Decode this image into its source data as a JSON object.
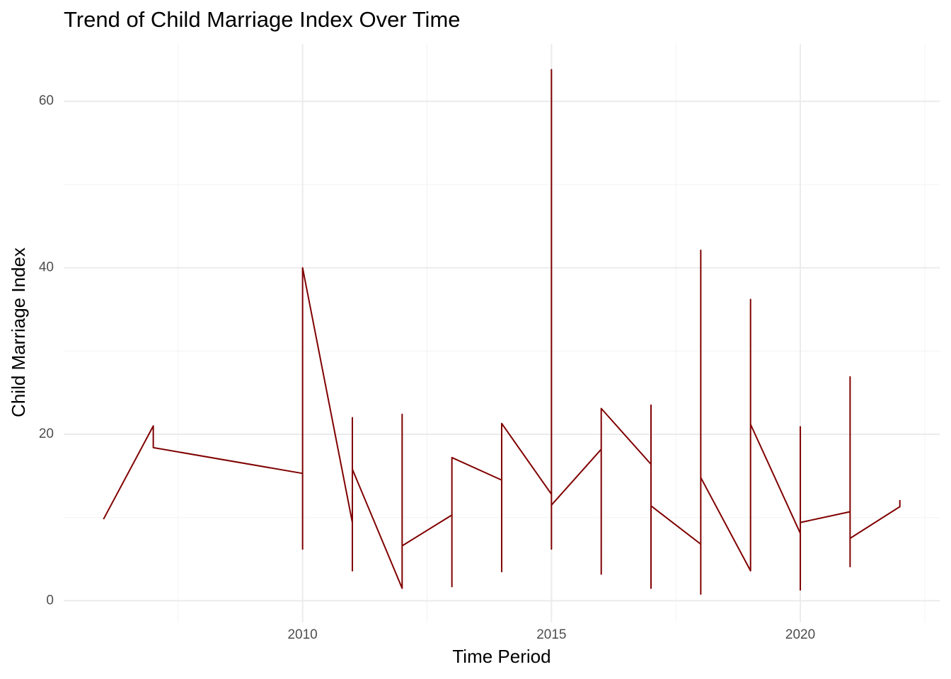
{
  "chart_data": {
    "type": "line",
    "title": "Trend of Child Marriage Index Over Time",
    "x_label": "Time Period",
    "y_label": "Child Marriage Index",
    "x": [
      2006,
      2007,
      2007,
      2010,
      2010,
      2010,
      2011,
      2011,
      2011,
      2011,
      2012,
      2012,
      2012,
      2013,
      2013,
      2013,
      2014,
      2014,
      2014,
      2015,
      2015,
      2015,
      2015,
      2016,
      2016,
      2016,
      2017,
      2017,
      2017,
      2017,
      2018,
      2018,
      2018,
      2018,
      2019,
      2019,
      2019,
      2020,
      2020,
      2020,
      2020,
      2021,
      2021,
      2021,
      2021,
      2022,
      2022
    ],
    "values": [
      9.8,
      21.0,
      18.4,
      15.3,
      6.2,
      40.0,
      9.4,
      22.0,
      3.6,
      15.8,
      1.5,
      22.4,
      6.6,
      10.3,
      1.7,
      17.2,
      14.5,
      3.5,
      21.3,
      12.8,
      6.2,
      63.8,
      11.5,
      18.2,
      3.2,
      23.1,
      16.4,
      23.5,
      1.5,
      11.4,
      6.8,
      0.8,
      42.1,
      14.8,
      3.6,
      36.2,
      21.2,
      8.1,
      1.3,
      20.9,
      9.4,
      10.7,
      26.9,
      4.1,
      7.5,
      11.3,
      12.1
    ],
    "color": "#800000",
    "xlim": [
      2005.2,
      2022.8
    ],
    "ylim": [
      -2.6,
      66.9
    ],
    "xticks": [
      2010,
      2015,
      2020
    ],
    "yticks": [
      0,
      20,
      40,
      60
    ],
    "x_minor_ticks": [
      2007.5,
      2012.5,
      2017.5,
      2022.5
    ],
    "y_minor_ticks": [
      10,
      30,
      50
    ],
    "grid": true
  }
}
